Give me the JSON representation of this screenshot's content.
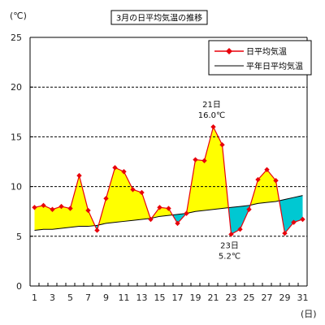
{
  "chart_data": {
    "type": "line",
    "title": "3月の日平均気温の推移",
    "ylabel": "(℃)",
    "xlabel": "(日)",
    "ylim": [
      0,
      25
    ],
    "yticks": [
      0,
      5,
      10,
      15,
      20,
      25
    ],
    "x": [
      1,
      2,
      3,
      4,
      5,
      6,
      7,
      8,
      9,
      10,
      11,
      12,
      13,
      14,
      15,
      16,
      17,
      18,
      19,
      20,
      21,
      22,
      23,
      24,
      25,
      26,
      27,
      28,
      29,
      30,
      31
    ],
    "xticks": [
      1,
      3,
      5,
      7,
      9,
      11,
      13,
      15,
      17,
      19,
      21,
      23,
      25,
      27,
      29,
      31
    ],
    "grid": "horizontal dashed",
    "legend_position": "top-right",
    "series": [
      {
        "name": "日平均気温",
        "color": "#e8000b",
        "marker": "diamond",
        "values": [
          7.9,
          8.1,
          7.7,
          8.0,
          7.8,
          11.1,
          7.6,
          5.6,
          8.8,
          11.9,
          11.5,
          9.7,
          9.4,
          6.7,
          7.9,
          7.8,
          6.3,
          7.3,
          12.7,
          12.6,
          16.0,
          14.2,
          5.2,
          5.7,
          7.7,
          10.7,
          11.7,
          10.6,
          5.3,
          6.4,
          6.7
        ]
      },
      {
        "name": "平年日平均気温",
        "color": "#000000",
        "values": [
          5.6,
          5.7,
          5.7,
          5.8,
          5.9,
          6.0,
          6.0,
          6.1,
          6.3,
          6.4,
          6.5,
          6.6,
          6.7,
          6.8,
          7.0,
          7.1,
          7.2,
          7.3,
          7.5,
          7.6,
          7.7,
          7.8,
          7.9,
          8.0,
          8.1,
          8.3,
          8.4,
          8.5,
          8.7,
          8.9,
          9.1
        ]
      }
    ],
    "fill_above_color": "#ffff00",
    "fill_below_color": "#00c8d2",
    "annotations": [
      {
        "day": 21,
        "line1": "21日",
        "line2": "16.0℃",
        "anchor": "above"
      },
      {
        "day": 23,
        "line1": "23日",
        "line2": "5.2℃",
        "anchor": "below"
      }
    ]
  }
}
